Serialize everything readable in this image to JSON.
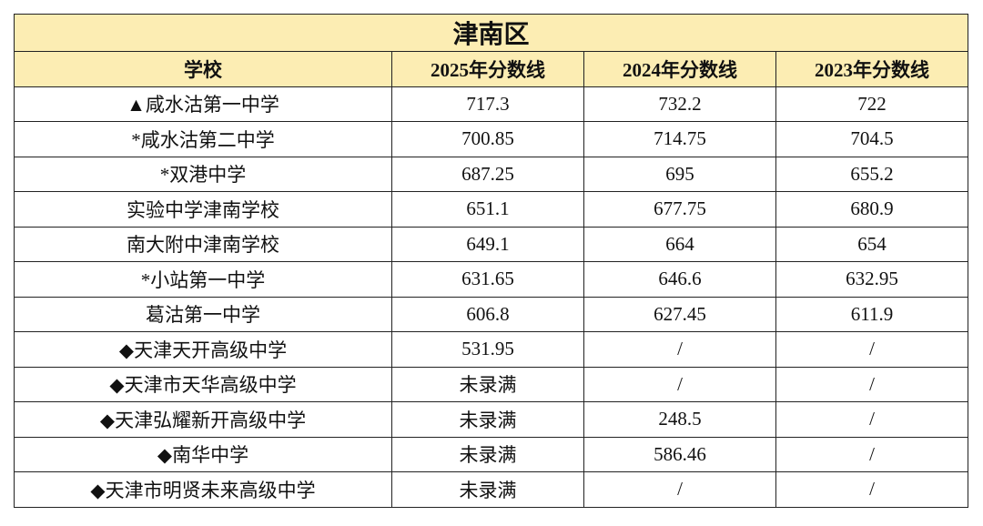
{
  "table": {
    "title": "津南区",
    "header": [
      "学校",
      "2025年分数线",
      "2024年分数线",
      "2023年分数线"
    ],
    "rows": [
      [
        "▲咸水沽第一中学",
        "717.3",
        "732.2",
        "722"
      ],
      [
        "*咸水沽第二中学",
        "700.85",
        "714.75",
        "704.5"
      ],
      [
        "*双港中学",
        "687.25",
        "695",
        "655.2"
      ],
      [
        "实验中学津南学校",
        "651.1",
        "677.75",
        "680.9"
      ],
      [
        "南大附中津南学校",
        "649.1",
        "664",
        "654"
      ],
      [
        "*小站第一中学",
        "631.65",
        "646.6",
        "632.95"
      ],
      [
        "葛沽第一中学",
        "606.8",
        "627.45",
        "611.9"
      ],
      [
        "◆天津天开高级中学",
        "531.95",
        "/",
        "/"
      ],
      [
        "◆天津市天华高级中学",
        "未录满",
        "/",
        "/"
      ],
      [
        "◆天津弘耀新开高级中学",
        "未录满",
        "248.5",
        "/"
      ],
      [
        "◆南华中学",
        "未录满",
        "586.46",
        "/"
      ],
      [
        "◆天津市明贤未来高级中学",
        "未录满",
        "/",
        "/"
      ]
    ]
  }
}
